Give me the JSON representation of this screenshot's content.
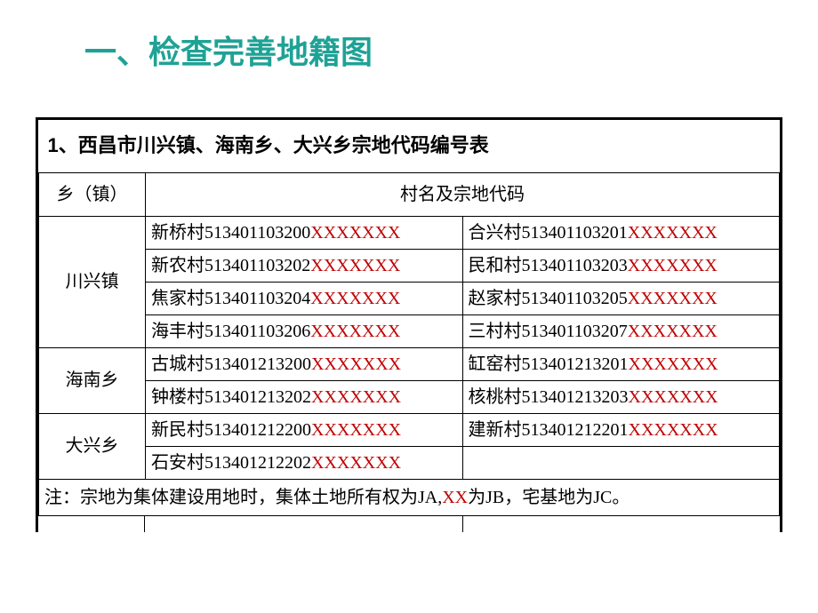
{
  "heading": "一、检查完善地籍图",
  "table": {
    "title": "1、西昌市川兴镇、海南乡、大兴乡宗地代码编号表",
    "col_town": "乡（镇）",
    "col_codes": "村名及宗地代码",
    "towns": [
      {
        "name": "川兴镇",
        "rows": [
          {
            "left": {
              "v": "新桥村",
              "c": "513401103200",
              "x": "XXXXXXX"
            },
            "right": {
              "v": "合兴村",
              "c": "513401103201",
              "x": "XXXXXXX"
            }
          },
          {
            "left": {
              "v": "新农村",
              "c": "513401103202",
              "x": "XXXXXXX"
            },
            "right": {
              "v": "民和村",
              "c": "513401103203",
              "x": "XXXXXXX"
            }
          },
          {
            "left": {
              "v": "焦家村",
              "c": "513401103204",
              "x": "XXXXXXX"
            },
            "right": {
              "v": "赵家村",
              "c": "513401103205",
              "x": "XXXXXXX"
            }
          },
          {
            "left": {
              "v": "海丰村",
              "c": "513401103206",
              "x": "XXXXXXX"
            },
            "right": {
              "v": "三村村",
              "c": "513401103207",
              "x": "XXXXXXX"
            }
          }
        ]
      },
      {
        "name": "海南乡",
        "rows": [
          {
            "left": {
              "v": "古城村",
              "c": "513401213200",
              "x": "XXXXXXX"
            },
            "right": {
              "v": "缸窑村",
              "c": "513401213201",
              "x": "XXXXXXX"
            }
          },
          {
            "left": {
              "v": "钟楼村",
              "c": "513401213202",
              "x": "XXXXXXX"
            },
            "right": {
              "v": "核桃村",
              "c": "513401213203",
              "x": "XXXXXXX"
            }
          }
        ]
      },
      {
        "name": "大兴乡",
        "rows": [
          {
            "left": {
              "v": "新民村",
              "c": "513401212200",
              "x": "XXXXXXX"
            },
            "right": {
              "v": "建新村",
              "c": "513401212201",
              "x": "XXXXXXX"
            }
          },
          {
            "left": {
              "v": "石安村",
              "c": "513401212202",
              "x": "XXXXXXX"
            },
            "right": null
          }
        ]
      }
    ],
    "note_pre": "注：宗地为集体建设用地时，集体土地所有权为JA,",
    "note_xx": "XX",
    "note_post": "为JB，宅基地为JC。"
  }
}
